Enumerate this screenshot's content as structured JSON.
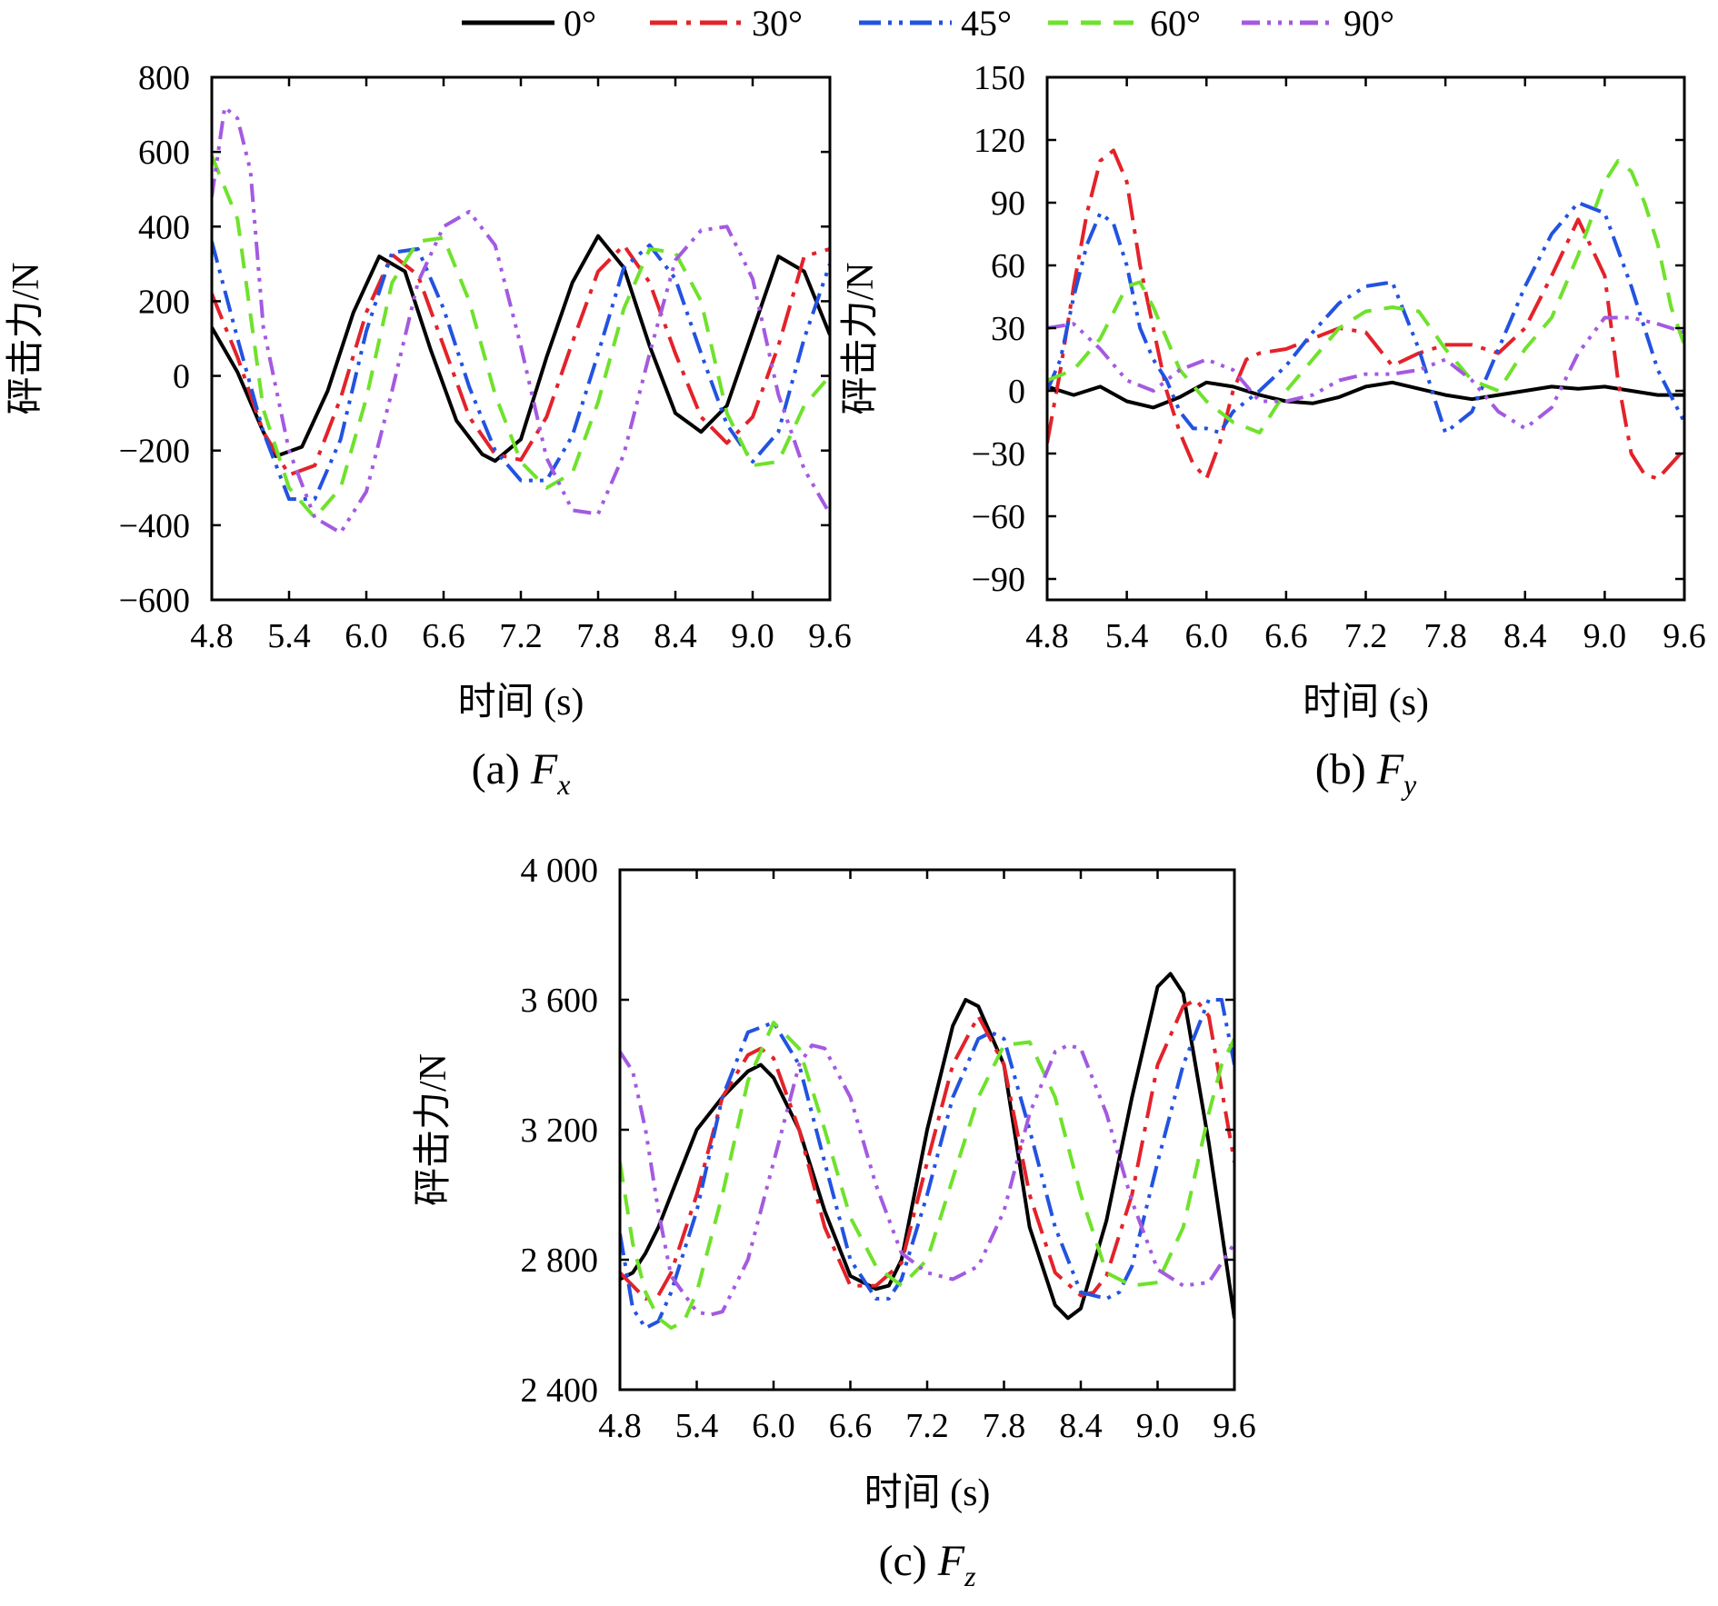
{
  "legend": [
    {
      "name": "0°",
      "color": "#000000"
    },
    {
      "name": "30°",
      "color": "#e3222a"
    },
    {
      "name": "45°",
      "color": "#2253e0"
    },
    {
      "name": "60°",
      "color": "#6fe22b"
    },
    {
      "name": "90°",
      "color": "#a35ae0"
    }
  ],
  "chart_data": [
    {
      "type": "line",
      "panel": "a",
      "caption_prefix": "(a)",
      "caption_symbol": "F",
      "caption_subscript": "x",
      "xlabel": "时间 (s)",
      "ylabel": "砰击力/N",
      "xlim": [
        4.8,
        9.6
      ],
      "ylim": [
        -600,
        800
      ],
      "xticks": [
        4.8,
        5.4,
        6.0,
        6.6,
        7.2,
        7.8,
        8.4,
        9.0,
        9.6
      ],
      "xtick_labels": [
        "4.8",
        "5.4",
        "6.0",
        "6.6",
        "7.2",
        "7.8",
        "8.4",
        "9.0",
        "9.6"
      ],
      "yticks": [
        -600,
        -400,
        -200,
        0,
        200,
        400,
        600,
        800
      ],
      "ytick_labels": [
        "−600",
        "−400",
        "−200",
        "0",
        "200",
        "400",
        "600",
        "800"
      ],
      "series": [
        {
          "name": "0°",
          "x": [
            4.8,
            5.0,
            5.2,
            5.3,
            5.5,
            5.7,
            5.9,
            6.1,
            6.3,
            6.5,
            6.7,
            6.9,
            7.0,
            7.2,
            7.4,
            7.6,
            7.8,
            8.0,
            8.2,
            8.4,
            8.6,
            8.8,
            9.0,
            9.2,
            9.4,
            9.6
          ],
          "y": [
            130,
            10,
            -150,
            -215,
            -190,
            -40,
            170,
            320,
            280,
            70,
            -120,
            -210,
            -228,
            -170,
            50,
            250,
            375,
            290,
            80,
            -100,
            -150,
            -80,
            120,
            320,
            280,
            110
          ]
        },
        {
          "name": "30°",
          "x": [
            4.8,
            5.0,
            5.2,
            5.4,
            5.6,
            5.8,
            6.0,
            6.2,
            6.4,
            6.6,
            6.8,
            7.0,
            7.2,
            7.4,
            7.6,
            7.8,
            8.0,
            8.2,
            8.4,
            8.6,
            8.8,
            9.0,
            9.2,
            9.4,
            9.6
          ],
          "y": [
            220,
            50,
            -150,
            -265,
            -240,
            -60,
            170,
            325,
            270,
            80,
            -110,
            -210,
            -225,
            -110,
            90,
            280,
            350,
            250,
            60,
            -110,
            -180,
            -110,
            80,
            320,
            340
          ]
        },
        {
          "name": "45°",
          "x": [
            4.8,
            5.0,
            5.2,
            5.4,
            5.6,
            5.8,
            6.0,
            6.2,
            6.4,
            6.6,
            6.8,
            7.0,
            7.2,
            7.4,
            7.6,
            7.8,
            8.0,
            8.2,
            8.4,
            8.6,
            8.8,
            9.0,
            9.2,
            9.4,
            9.6
          ],
          "y": [
            360,
            100,
            -150,
            -330,
            -330,
            -170,
            120,
            330,
            340,
            180,
            -30,
            -200,
            -280,
            -280,
            -160,
            60,
            290,
            350,
            260,
            60,
            -130,
            -230,
            -150,
            100,
            300
          ]
        },
        {
          "name": "60°",
          "x": [
            4.8,
            5.0,
            5.2,
            5.4,
            5.6,
            5.8,
            6.0,
            6.2,
            6.4,
            6.6,
            6.8,
            7.0,
            7.2,
            7.4,
            7.6,
            7.8,
            8.0,
            8.2,
            8.4,
            8.6,
            8.8,
            9.0,
            9.2,
            9.4,
            9.6
          ],
          "y": [
            590,
            420,
            -90,
            -300,
            -380,
            -300,
            -60,
            250,
            360,
            370,
            200,
            -50,
            -230,
            -300,
            -260,
            -70,
            180,
            340,
            330,
            200,
            -100,
            -240,
            -230,
            -80,
            0
          ]
        },
        {
          "name": "90°",
          "x": [
            4.8,
            4.9,
            5.0,
            5.1,
            5.2,
            5.4,
            5.6,
            5.8,
            6.0,
            6.2,
            6.4,
            6.6,
            6.8,
            7.0,
            7.2,
            7.4,
            7.6,
            7.8,
            8.0,
            8.2,
            8.4,
            8.6,
            8.8,
            9.0,
            9.2,
            9.4,
            9.6
          ],
          "y": [
            480,
            720,
            690,
            550,
            130,
            -200,
            -380,
            -420,
            -310,
            -40,
            250,
            400,
            440,
            350,
            80,
            -220,
            -360,
            -370,
            -210,
            60,
            310,
            390,
            400,
            260,
            -50,
            -250,
            -370
          ]
        }
      ]
    },
    {
      "type": "line",
      "panel": "b",
      "caption_prefix": "(b)",
      "caption_symbol": "F",
      "caption_subscript": "y",
      "xlabel": "时间 (s)",
      "ylabel": "砰击力/N",
      "xlim": [
        4.8,
        9.6
      ],
      "ylim": [
        -100,
        150
      ],
      "xticks": [
        4.8,
        5.4,
        6.0,
        6.6,
        7.2,
        7.8,
        8.4,
        9.0,
        9.6
      ],
      "xtick_labels": [
        "4.8",
        "5.4",
        "6.0",
        "6.6",
        "7.2",
        "7.8",
        "8.4",
        "9.0",
        "9.6"
      ],
      "yticks": [
        -90,
        -60,
        -30,
        0,
        30,
        60,
        90,
        120,
        150
      ],
      "ytick_labels": [
        "−90",
        "−60",
        "−30",
        "0",
        "30",
        "60",
        "90",
        "120",
        "150"
      ],
      "series": [
        {
          "name": "0°",
          "x": [
            4.8,
            5.0,
            5.2,
            5.4,
            5.6,
            5.8,
            6.0,
            6.2,
            6.4,
            6.6,
            6.8,
            7.0,
            7.2,
            7.4,
            7.6,
            7.8,
            8.0,
            8.2,
            8.4,
            8.6,
            8.8,
            9.0,
            9.2,
            9.4,
            9.6
          ],
          "y": [
            2,
            -2,
            2,
            -5,
            -8,
            -3,
            4,
            2,
            -2,
            -5,
            -6,
            -3,
            2,
            4,
            1,
            -2,
            -4,
            -2,
            0,
            2,
            1,
            2,
            0,
            -2,
            -2
          ]
        },
        {
          "name": "30°",
          "x": [
            4.8,
            4.9,
            5.0,
            5.1,
            5.2,
            5.3,
            5.4,
            5.5,
            5.6,
            5.7,
            5.8,
            5.9,
            6.0,
            6.1,
            6.2,
            6.3,
            6.4,
            6.6,
            6.8,
            7.0,
            7.2,
            7.4,
            7.6,
            7.8,
            8.0,
            8.2,
            8.4,
            8.6,
            8.8,
            9.0,
            9.1,
            9.2,
            9.3,
            9.4,
            9.5,
            9.6
          ],
          "y": [
            -25,
            10,
            50,
            85,
            110,
            115,
            100,
            60,
            30,
            0,
            -20,
            -35,
            -42,
            -25,
            0,
            15,
            18,
            20,
            25,
            30,
            28,
            12,
            18,
            22,
            22,
            18,
            30,
            55,
            82,
            55,
            5,
            -30,
            -40,
            -42,
            -35,
            -28
          ]
        },
        {
          "name": "45°",
          "x": [
            4.8,
            4.9,
            5.0,
            5.1,
            5.2,
            5.3,
            5.4,
            5.5,
            5.6,
            5.7,
            5.8,
            5.9,
            6.0,
            6.1,
            6.2,
            6.3,
            6.4,
            6.6,
            6.8,
            7.0,
            7.2,
            7.4,
            7.6,
            7.8,
            8.0,
            8.2,
            8.4,
            8.6,
            8.8,
            9.0,
            9.2,
            9.4,
            9.6
          ],
          "y": [
            0,
            15,
            45,
            70,
            85,
            80,
            60,
            30,
            15,
            5,
            -10,
            -18,
            -18,
            -20,
            -10,
            -5,
            0,
            12,
            28,
            42,
            50,
            52,
            20,
            -20,
            -10,
            20,
            50,
            75,
            90,
            85,
            50,
            10,
            -15
          ]
        },
        {
          "name": "60°",
          "x": [
            4.8,
            5.0,
            5.2,
            5.4,
            5.5,
            5.6,
            5.8,
            6.0,
            6.2,
            6.4,
            6.6,
            6.8,
            7.0,
            7.2,
            7.4,
            7.6,
            7.8,
            8.0,
            8.2,
            8.4,
            8.6,
            8.8,
            9.0,
            9.1,
            9.2,
            9.3,
            9.4,
            9.5,
            9.6
          ],
          "y": [
            5,
            10,
            25,
            50,
            52,
            40,
            10,
            -5,
            -15,
            -20,
            0,
            15,
            30,
            38,
            40,
            38,
            20,
            5,
            0,
            20,
            35,
            65,
            100,
            110,
            105,
            90,
            70,
            40,
            22
          ]
        },
        {
          "name": "90°",
          "x": [
            4.8,
            5.0,
            5.2,
            5.4,
            5.6,
            5.8,
            6.0,
            6.2,
            6.4,
            6.6,
            6.8,
            7.0,
            7.2,
            7.4,
            7.6,
            7.8,
            8.0,
            8.2,
            8.4,
            8.6,
            8.8,
            9.0,
            9.2,
            9.4,
            9.6
          ],
          "y": [
            30,
            32,
            20,
            5,
            0,
            10,
            15,
            10,
            -5,
            -5,
            -2,
            5,
            8,
            8,
            10,
            15,
            5,
            -10,
            -18,
            -8,
            18,
            35,
            35,
            32,
            28
          ]
        }
      ]
    },
    {
      "type": "line",
      "panel": "c",
      "caption_prefix": "(c)",
      "caption_symbol": "F",
      "caption_subscript": "z",
      "xlabel": "时间 (s)",
      "ylabel": "砰击力/N",
      "xlim": [
        4.8,
        9.6
      ],
      "ylim": [
        2400,
        4000
      ],
      "xticks": [
        4.8,
        5.4,
        6.0,
        6.6,
        7.2,
        7.8,
        8.4,
        9.0,
        9.6
      ],
      "xtick_labels": [
        "4.8",
        "5.4",
        "6.0",
        "6.6",
        "7.2",
        "7.8",
        "8.4",
        "9.0",
        "9.6"
      ],
      "yticks": [
        2400,
        2800,
        3200,
        3600,
        4000
      ],
      "ytick_labels": [
        "2 400",
        "2 800",
        "3 200",
        "3 600",
        "4 000"
      ],
      "series": [
        {
          "name": "0°",
          "x": [
            4.8,
            4.9,
            5.0,
            5.1,
            5.2,
            5.4,
            5.6,
            5.8,
            5.9,
            6.0,
            6.2,
            6.4,
            6.6,
            6.8,
            6.9,
            7.0,
            7.2,
            7.4,
            7.5,
            7.6,
            7.8,
            8.0,
            8.2,
            8.3,
            8.4,
            8.6,
            8.8,
            9.0,
            9.1,
            9.2,
            9.4,
            9.6
          ],
          "y": [
            2740,
            2760,
            2820,
            2900,
            3000,
            3200,
            3300,
            3380,
            3400,
            3360,
            3200,
            2950,
            2750,
            2710,
            2720,
            2800,
            3200,
            3520,
            3600,
            3580,
            3400,
            2900,
            2660,
            2620,
            2650,
            2920,
            3300,
            3640,
            3680,
            3620,
            3160,
            2620
          ]
        },
        {
          "name": "30°",
          "x": [
            4.8,
            4.9,
            5.0,
            5.1,
            5.2,
            5.4,
            5.6,
            5.8,
            5.9,
            6.0,
            6.2,
            6.4,
            6.6,
            6.8,
            7.0,
            7.2,
            7.4,
            7.6,
            7.8,
            8.0,
            8.2,
            8.4,
            8.5,
            8.6,
            8.8,
            9.0,
            9.2,
            9.3,
            9.4,
            9.6
          ],
          "y": [
            2760,
            2720,
            2680,
            2690,
            2760,
            3000,
            3300,
            3430,
            3450,
            3420,
            3200,
            2900,
            2720,
            2720,
            2790,
            3100,
            3400,
            3550,
            3400,
            3000,
            2760,
            2690,
            2700,
            2750,
            3000,
            3400,
            3580,
            3600,
            3550,
            3100
          ]
        },
        {
          "name": "45°",
          "x": [
            4.8,
            4.9,
            5.0,
            5.1,
            5.2,
            5.4,
            5.6,
            5.8,
            6.0,
            6.2,
            6.4,
            6.6,
            6.8,
            6.9,
            7.0,
            7.2,
            7.4,
            7.6,
            7.7,
            7.8,
            8.0,
            8.2,
            8.4,
            8.6,
            8.7,
            8.8,
            9.0,
            9.2,
            9.4,
            9.5,
            9.6
          ],
          "y": [
            2880,
            2650,
            2590,
            2610,
            2700,
            2950,
            3300,
            3500,
            3530,
            3400,
            3100,
            2800,
            2680,
            2680,
            2740,
            3000,
            3300,
            3480,
            3500,
            3480,
            3200,
            2900,
            2700,
            2680,
            2700,
            2780,
            3100,
            3400,
            3600,
            3600,
            3400
          ]
        },
        {
          "name": "60°",
          "x": [
            4.8,
            4.9,
            5.0,
            5.1,
            5.2,
            5.3,
            5.4,
            5.6,
            5.8,
            6.0,
            6.2,
            6.4,
            6.6,
            6.8,
            7.0,
            7.2,
            7.4,
            7.6,
            7.8,
            8.0,
            8.2,
            8.4,
            8.6,
            8.8,
            9.0,
            9.2,
            9.4,
            9.5,
            9.6
          ],
          "y": [
            3100,
            2850,
            2700,
            2620,
            2590,
            2610,
            2700,
            3000,
            3350,
            3530,
            3450,
            3200,
            2930,
            2780,
            2720,
            2800,
            3050,
            3300,
            3460,
            3470,
            3300,
            3000,
            2760,
            2720,
            2730,
            2900,
            3250,
            3400,
            3480
          ]
        },
        {
          "name": "90°",
          "x": [
            4.8,
            4.9,
            5.0,
            5.1,
            5.2,
            5.4,
            5.5,
            5.6,
            5.8,
            6.0,
            6.2,
            6.3,
            6.4,
            6.6,
            6.8,
            7.0,
            7.2,
            7.4,
            7.6,
            7.8,
            8.0,
            8.2,
            8.3,
            8.4,
            8.6,
            8.8,
            9.0,
            9.2,
            9.4,
            9.6
          ],
          "y": [
            3440,
            3380,
            3200,
            2950,
            2750,
            2640,
            2630,
            2640,
            2800,
            3100,
            3400,
            3460,
            3450,
            3300,
            3030,
            2820,
            2760,
            2740,
            2780,
            2950,
            3250,
            3440,
            3460,
            3450,
            3250,
            2980,
            2770,
            2720,
            2730,
            2850
          ]
        }
      ]
    }
  ]
}
